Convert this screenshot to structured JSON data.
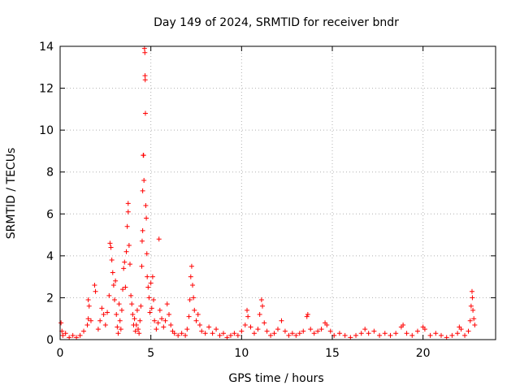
{
  "chart_data": {
    "type": "scatter",
    "title": "Day 149 of 2024, SRMTID for receiver bndr",
    "xlabel": "GPS time / hours",
    "ylabel": "SRMTID / TECUs",
    "xlim": [
      0,
      24
    ],
    "ylim": [
      0,
      14
    ],
    "xticks": [
      0,
      5,
      10,
      15,
      20
    ],
    "yticks": [
      0,
      2,
      4,
      6,
      8,
      10,
      12,
      14
    ],
    "xtick_labels": [
      "0",
      "5",
      "10",
      "15",
      "20"
    ],
    "ytick_labels": [
      "0",
      "2",
      "4",
      "6",
      "8",
      "10",
      "12",
      "14"
    ],
    "grid": true,
    "marker": "+",
    "color": "#ff0000",
    "series": [
      {
        "name": "SRMTID",
        "points": [
          [
            0.05,
            0.8
          ],
          [
            0.1,
            0.4
          ],
          [
            0.15,
            0.2
          ],
          [
            0.3,
            0.3
          ],
          [
            0.5,
            0.1
          ],
          [
            0.7,
            0.2
          ],
          [
            0.9,
            0.1
          ],
          [
            1.1,
            0.2
          ],
          [
            1.3,
            0.4
          ],
          [
            1.5,
            0.7
          ],
          [
            1.55,
            1.0
          ],
          [
            1.6,
            1.6
          ],
          [
            1.55,
            1.9
          ],
          [
            1.7,
            0.9
          ],
          [
            1.9,
            2.6
          ],
          [
            1.95,
            2.3
          ],
          [
            2.1,
            0.5
          ],
          [
            2.2,
            0.9
          ],
          [
            2.3,
            1.5
          ],
          [
            2.4,
            1.2
          ],
          [
            2.5,
            0.7
          ],
          [
            2.6,
            1.3
          ],
          [
            2.7,
            2.1
          ],
          [
            2.75,
            4.6
          ],
          [
            2.8,
            4.4
          ],
          [
            2.85,
            3.8
          ],
          [
            2.9,
            3.2
          ],
          [
            2.95,
            2.6
          ],
          [
            3.0,
            1.9
          ],
          [
            3.05,
            2.8
          ],
          [
            3.1,
            1.2
          ],
          [
            3.15,
            0.6
          ],
          [
            3.2,
            0.3
          ],
          [
            3.25,
            1.7
          ],
          [
            3.3,
            0.9
          ],
          [
            3.35,
            0.5
          ],
          [
            3.4,
            1.4
          ],
          [
            3.45,
            2.4
          ],
          [
            3.5,
            3.4
          ],
          [
            3.55,
            3.7
          ],
          [
            3.6,
            2.5
          ],
          [
            3.65,
            4.2
          ],
          [
            3.7,
            5.4
          ],
          [
            3.75,
            6.5
          ],
          [
            3.75,
            6.1
          ],
          [
            3.8,
            4.5
          ],
          [
            3.85,
            3.6
          ],
          [
            3.9,
            2.1
          ],
          [
            3.95,
            1.7
          ],
          [
            4.0,
            1.2
          ],
          [
            4.05,
            0.7
          ],
          [
            4.1,
            1.0
          ],
          [
            4.15,
            0.4
          ],
          [
            4.2,
            0.7
          ],
          [
            4.25,
            1.4
          ],
          [
            4.3,
            0.5
          ],
          [
            4.35,
            0.3
          ],
          [
            4.4,
            0.9
          ],
          [
            4.45,
            1.6
          ],
          [
            4.5,
            3.5
          ],
          [
            4.52,
            4.7
          ],
          [
            4.55,
            5.2
          ],
          [
            4.55,
            7.1
          ],
          [
            4.58,
            8.8
          ],
          [
            4.6,
            8.8
          ],
          [
            4.62,
            7.6
          ],
          [
            4.65,
            13.9
          ],
          [
            4.67,
            13.7
          ],
          [
            4.68,
            12.6
          ],
          [
            4.69,
            12.4
          ],
          [
            4.7,
            10.8
          ],
          [
            4.72,
            6.4
          ],
          [
            4.75,
            5.8
          ],
          [
            4.78,
            4.1
          ],
          [
            4.8,
            3.0
          ],
          [
            4.85,
            2.5
          ],
          [
            4.9,
            2.0
          ],
          [
            4.95,
            1.3
          ],
          [
            5.0,
            2.7
          ],
          [
            5.05,
            1.5
          ],
          [
            5.1,
            3.0
          ],
          [
            5.15,
            1.9
          ],
          [
            5.2,
            0.9
          ],
          [
            5.3,
            0.5
          ],
          [
            5.4,
            0.8
          ],
          [
            5.45,
            4.8
          ],
          [
            5.5,
            1.4
          ],
          [
            5.6,
            1.0
          ],
          [
            5.7,
            0.6
          ],
          [
            5.8,
            0.9
          ],
          [
            5.9,
            1.7
          ],
          [
            6.0,
            1.2
          ],
          [
            6.1,
            0.7
          ],
          [
            6.2,
            0.4
          ],
          [
            6.3,
            0.3
          ],
          [
            6.5,
            0.2
          ],
          [
            6.7,
            0.3
          ],
          [
            6.9,
            0.2
          ],
          [
            7.0,
            0.5
          ],
          [
            7.1,
            1.1
          ],
          [
            7.15,
            1.9
          ],
          [
            7.2,
            3.0
          ],
          [
            7.25,
            3.5
          ],
          [
            7.3,
            2.6
          ],
          [
            7.35,
            2.0
          ],
          [
            7.4,
            1.4
          ],
          [
            7.5,
            0.9
          ],
          [
            7.6,
            1.2
          ],
          [
            7.7,
            0.7
          ],
          [
            7.8,
            0.4
          ],
          [
            8.0,
            0.3
          ],
          [
            8.2,
            0.6
          ],
          [
            8.4,
            0.3
          ],
          [
            8.6,
            0.5
          ],
          [
            8.8,
            0.2
          ],
          [
            9.0,
            0.3
          ],
          [
            9.2,
            0.1
          ],
          [
            9.4,
            0.2
          ],
          [
            9.6,
            0.3
          ],
          [
            9.8,
            0.2
          ],
          [
            10.0,
            0.4
          ],
          [
            10.2,
            0.7
          ],
          [
            10.3,
            1.4
          ],
          [
            10.35,
            1.1
          ],
          [
            10.5,
            0.6
          ],
          [
            10.7,
            0.3
          ],
          [
            10.9,
            0.5
          ],
          [
            11.0,
            1.2
          ],
          [
            11.1,
            1.9
          ],
          [
            11.15,
            1.6
          ],
          [
            11.25,
            0.8
          ],
          [
            11.4,
            0.4
          ],
          [
            11.6,
            0.2
          ],
          [
            11.8,
            0.3
          ],
          [
            12.0,
            0.5
          ],
          [
            12.2,
            0.9
          ],
          [
            12.4,
            0.4
          ],
          [
            12.6,
            0.2
          ],
          [
            12.8,
            0.3
          ],
          [
            13.0,
            0.2
          ],
          [
            13.2,
            0.3
          ],
          [
            13.4,
            0.4
          ],
          [
            13.6,
            1.1
          ],
          [
            13.65,
            1.2
          ],
          [
            13.8,
            0.5
          ],
          [
            14.0,
            0.3
          ],
          [
            14.2,
            0.4
          ],
          [
            14.4,
            0.5
          ],
          [
            14.6,
            0.8
          ],
          [
            14.7,
            0.7
          ],
          [
            14.9,
            0.4
          ],
          [
            15.1,
            0.2
          ],
          [
            15.4,
            0.3
          ],
          [
            15.7,
            0.2
          ],
          [
            16.0,
            0.1
          ],
          [
            16.3,
            0.2
          ],
          [
            16.6,
            0.3
          ],
          [
            16.8,
            0.5
          ],
          [
            17.0,
            0.3
          ],
          [
            17.3,
            0.4
          ],
          [
            17.6,
            0.2
          ],
          [
            17.9,
            0.3
          ],
          [
            18.2,
            0.2
          ],
          [
            18.5,
            0.3
          ],
          [
            18.8,
            0.6
          ],
          [
            18.9,
            0.7
          ],
          [
            19.1,
            0.3
          ],
          [
            19.4,
            0.2
          ],
          [
            19.7,
            0.4
          ],
          [
            20.0,
            0.6
          ],
          [
            20.1,
            0.5
          ],
          [
            20.4,
            0.2
          ],
          [
            20.7,
            0.3
          ],
          [
            21.0,
            0.2
          ],
          [
            21.3,
            0.1
          ],
          [
            21.6,
            0.2
          ],
          [
            21.9,
            0.3
          ],
          [
            22.0,
            0.6
          ],
          [
            22.1,
            0.5
          ],
          [
            22.3,
            0.2
          ],
          [
            22.5,
            0.4
          ],
          [
            22.6,
            0.9
          ],
          [
            22.65,
            1.6
          ],
          [
            22.7,
            2.3
          ],
          [
            22.72,
            2.0
          ],
          [
            22.75,
            1.4
          ],
          [
            22.8,
            1.0
          ],
          [
            22.85,
            0.7
          ]
        ]
      }
    ]
  }
}
